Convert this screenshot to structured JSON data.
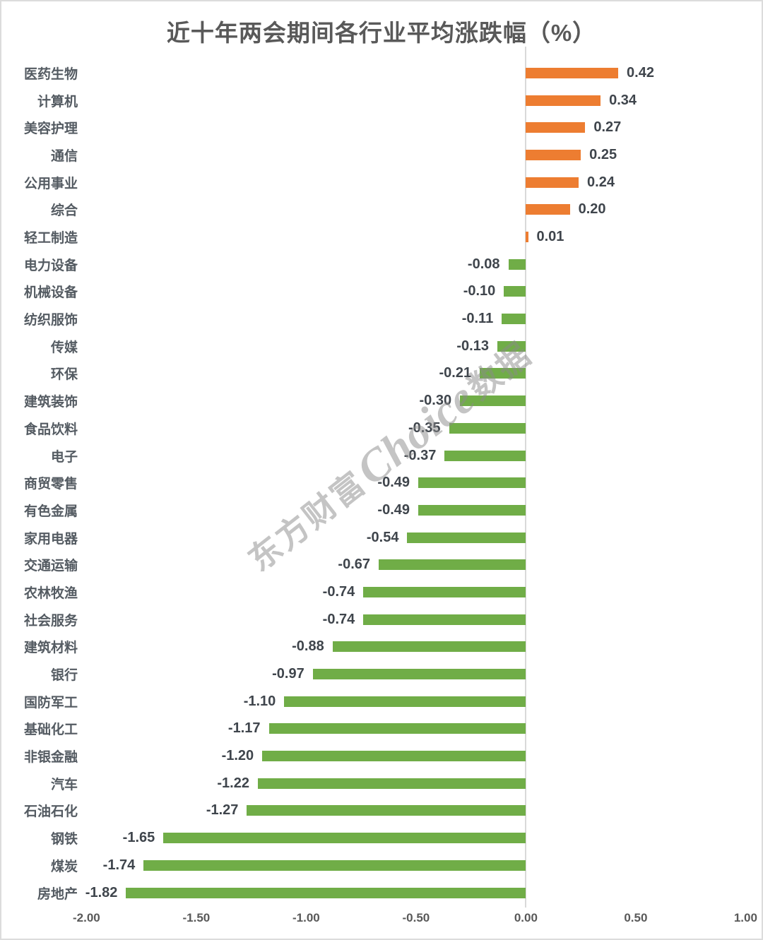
{
  "title": "近十年两会期间各行业平均涨跌幅（%）",
  "watermark": {
    "prefix": "东方财富",
    "brand": "Choice",
    "suffix": "数据"
  },
  "colors": {
    "positive_bar": "#ED7D31",
    "negative_bar": "#70AD47",
    "title_text": "#595959",
    "category_text": "#545B62",
    "value_text": "#3F454C",
    "axis_text": "#595959",
    "gridline": "#D9D9D9",
    "watermark_text": "#8A8A8A"
  },
  "chart_data": {
    "type": "bar",
    "orientation": "horizontal",
    "title": "近十年两会期间各行业平均涨跌幅（%）",
    "xlabel": "",
    "ylabel": "",
    "xlim": [
      -2.0,
      1.0
    ],
    "x_ticks": [
      "-2.00",
      "-1.50",
      "-1.00",
      "-0.50",
      "0.00",
      "0.50",
      "1.00"
    ],
    "grid": "zero-line-only",
    "legend": "none",
    "categories": [
      "医药生物",
      "计算机",
      "美容护理",
      "通信",
      "公用事业",
      "综合",
      "轻工制造",
      "电力设备",
      "机械设备",
      "纺织服饰",
      "传媒",
      "环保",
      "建筑装饰",
      "食品饮料",
      "电子",
      "商贸零售",
      "有色金属",
      "家用电器",
      "交通运输",
      "农林牧渔",
      "社会服务",
      "建筑材料",
      "银行",
      "国防军工",
      "基础化工",
      "非银金融",
      "汽车",
      "石油石化",
      "钢铁",
      "煤炭",
      "房地产"
    ],
    "values": [
      0.42,
      0.34,
      0.27,
      0.25,
      0.24,
      0.2,
      0.01,
      -0.08,
      -0.1,
      -0.11,
      -0.13,
      -0.21,
      -0.3,
      -0.35,
      -0.37,
      -0.49,
      -0.49,
      -0.54,
      -0.67,
      -0.74,
      -0.74,
      -0.88,
      -0.97,
      -1.1,
      -1.17,
      -1.2,
      -1.22,
      -1.27,
      -1.65,
      -1.74,
      -1.82
    ],
    "value_labels": [
      "0.42",
      "0.34",
      "0.27",
      "0.25",
      "0.24",
      "0.20",
      "0.01",
      "-0.08",
      "-0.10",
      "-0.11",
      "-0.13",
      "-0.21",
      "-0.30",
      "-0.35",
      "-0.37",
      "-0.49",
      "-0.49",
      "-0.54",
      "-0.67",
      "-0.74",
      "-0.74",
      "-0.88",
      "-0.97",
      "-1.10",
      "-1.17",
      "-1.20",
      "-1.22",
      "-1.27",
      "-1.65",
      "-1.74",
      "-1.82"
    ]
  }
}
